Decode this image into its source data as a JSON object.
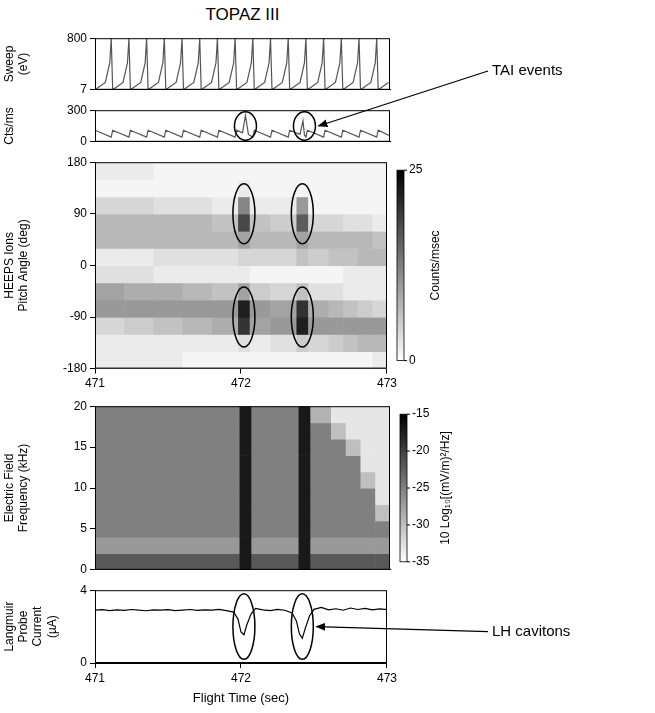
{
  "title": "TOPAZ III",
  "chart_data": [
    {
      "type": "line",
      "y_label": "Sweep (eV)",
      "color": "#555555",
      "grid": false,
      "tick_labels": "y",
      "xlim": [
        471,
        473
      ],
      "ylim": [
        7,
        800
      ],
      "yticks": [
        7,
        800
      ],
      "x": [
        471.0,
        471.07,
        471.1,
        471.11,
        471.12,
        471.19,
        471.22,
        471.23,
        471.24,
        471.31,
        471.34,
        471.35,
        471.36,
        471.43,
        471.46,
        471.47,
        471.48,
        471.55,
        471.58,
        471.59,
        471.6,
        471.67,
        471.7,
        471.71,
        471.72,
        471.79,
        471.82,
        471.83,
        471.84,
        471.91,
        471.94,
        471.95,
        471.96,
        472.03,
        472.06,
        472.07,
        472.08,
        472.15,
        472.18,
        472.19,
        472.2,
        472.27,
        472.3,
        472.31,
        472.32,
        472.39,
        472.42,
        472.43,
        472.44,
        472.51,
        472.54,
        472.55,
        472.56,
        472.63,
        472.66,
        472.67,
        472.68,
        472.75,
        472.78,
        472.79,
        472.8,
        472.87,
        472.9,
        472.91,
        472.92,
        472.99
      ],
      "values": [
        7,
        120,
        420,
        800,
        7,
        120,
        420,
        800,
        7,
        120,
        420,
        800,
        7,
        120,
        420,
        800,
        7,
        120,
        420,
        800,
        7,
        120,
        420,
        800,
        7,
        120,
        420,
        800,
        7,
        120,
        420,
        800,
        7,
        120,
        420,
        800,
        7,
        120,
        420,
        800,
        7,
        120,
        420,
        800,
        7,
        120,
        420,
        800,
        7,
        120,
        420,
        800,
        7,
        120,
        420,
        800,
        7,
        120,
        420,
        800,
        7,
        120,
        420,
        800,
        7,
        120
      ]
    },
    {
      "type": "line",
      "y_label": "Cts/ms",
      "color": "#555555",
      "grid": false,
      "tick_labels": "y",
      "xlim": [
        471,
        473
      ],
      "ylim": [
        0,
        300
      ],
      "yticks": [
        0,
        300
      ],
      "x": [
        471.0,
        471.11,
        471.12,
        471.23,
        471.24,
        471.35,
        471.36,
        471.47,
        471.48,
        471.59,
        471.6,
        471.71,
        471.72,
        471.83,
        471.84,
        471.95,
        471.96,
        472.0,
        472.02,
        472.04,
        472.07,
        472.08,
        472.19,
        472.2,
        472.31,
        472.32,
        472.39,
        472.41,
        472.42,
        472.43,
        472.44,
        472.55,
        472.56,
        472.67,
        472.68,
        472.79,
        472.8,
        472.91,
        472.92,
        473.0
      ],
      "values": [
        110,
        45,
        110,
        45,
        110,
        45,
        110,
        45,
        110,
        45,
        110,
        45,
        110,
        45,
        110,
        45,
        110,
        85,
        250,
        70,
        45,
        110,
        45,
        110,
        45,
        110,
        70,
        200,
        65,
        45,
        110,
        45,
        110,
        45,
        110,
        45,
        110,
        45,
        110,
        55
      ],
      "highlighted_x": [
        472.02,
        472.42
      ],
      "annotation": "TAI events"
    },
    {
      "type": "heatmap",
      "y_label": [
        "HEEPS Ions",
        "Pitch Angle (deg)"
      ],
      "grid": false,
      "xlim": [
        471,
        473
      ],
      "xticks": [
        471,
        472,
        473
      ],
      "ylim": [
        -180,
        180
      ],
      "yticks": [
        -180,
        -90,
        0,
        90,
        180
      ],
      "x_edges": [
        471.0,
        471.2,
        471.4,
        471.6,
        471.8,
        471.98,
        472.06,
        472.2,
        472.38,
        472.46,
        472.6,
        472.7,
        472.8,
        472.9,
        473.0
      ],
      "y_edges": [
        -180,
        -150,
        -120,
        -90,
        -60,
        -30,
        0,
        30,
        60,
        90,
        120,
        150,
        180
      ],
      "cells": [
        [
          2,
          2,
          2,
          1,
          1,
          1,
          1,
          1,
          1,
          1,
          1,
          1,
          1,
          2
        ],
        [
          2,
          2,
          2,
          2,
          2,
          3,
          2,
          3,
          5,
          4,
          5,
          6,
          7,
          7
        ],
        [
          4,
          5,
          6,
          7,
          8,
          20,
          9,
          10,
          22,
          10,
          10,
          10,
          10,
          10
        ],
        [
          10,
          10,
          10,
          10,
          10,
          22,
          10,
          9,
          20,
          8,
          7,
          6,
          5,
          4
        ],
        [
          9,
          8,
          8,
          7,
          6,
          9,
          5,
          4,
          6,
          3,
          3,
          2,
          2,
          2
        ],
        [
          3,
          3,
          2,
          2,
          2,
          2,
          1,
          1,
          1,
          1,
          1,
          2,
          2,
          2
        ],
        [
          2,
          2,
          3,
          3,
          3,
          4,
          4,
          4,
          6,
          5,
          6,
          6,
          7,
          7
        ],
        [
          7,
          7,
          7,
          7,
          7,
          9,
          7,
          7,
          9,
          7,
          7,
          7,
          7,
          6
        ],
        [
          7,
          7,
          7,
          7,
          6,
          18,
          6,
          5,
          16,
          4,
          4,
          3,
          3,
          2
        ],
        [
          4,
          4,
          3,
          3,
          2,
          12,
          2,
          2,
          10,
          1,
          1,
          1,
          1,
          1
        ],
        [
          1,
          1,
          1,
          1,
          1,
          2,
          1,
          1,
          1,
          1,
          1,
          1,
          1,
          1
        ],
        [
          2,
          2,
          1,
          1,
          1,
          1,
          1,
          1,
          1,
          1,
          1,
          1,
          1,
          1
        ]
      ],
      "colorbar": {
        "label": "Counts/msec",
        "range": [
          0,
          25
        ],
        "ticks": [
          0,
          25
        ]
      },
      "highlighted_x": [
        472.02,
        472.42
      ],
      "highlighted_y": [
        90,
        -90
      ]
    },
    {
      "type": "heatmap",
      "y_label": [
        "Electric Field",
        "Frequency (kHz)"
      ],
      "grid": false,
      "tick_labels": "y",
      "xlim": [
        471,
        473
      ],
      "ylim": [
        0,
        20
      ],
      "yticks": [
        0,
        5,
        10,
        15,
        20
      ],
      "x_edges": [
        471.0,
        471.2,
        471.4,
        471.6,
        471.8,
        471.98,
        472.06,
        472.2,
        472.38,
        472.46,
        472.6,
        472.7,
        472.8,
        472.9,
        473.0
      ],
      "y_edges": [
        0,
        2,
        4,
        6,
        8,
        10,
        12,
        14,
        16,
        18,
        20
      ],
      "cells": [
        [
          -22,
          -22,
          -22,
          -22,
          -22,
          -17,
          -22,
          -22,
          -17,
          -22,
          -22,
          -22,
          -22,
          -22
        ],
        [
          -27,
          -27,
          -27,
          -27,
          -27,
          -17,
          -27,
          -27,
          -17,
          -27,
          -27,
          -27,
          -27,
          -27
        ],
        [
          -25,
          -25,
          -25,
          -25,
          -25,
          -17,
          -25,
          -25,
          -17,
          -25,
          -25,
          -25,
          -25,
          -25
        ],
        [
          -25,
          -25,
          -25,
          -25,
          -25,
          -17,
          -25,
          -25,
          -17,
          -25,
          -25,
          -25,
          -25,
          -30
        ],
        [
          -25,
          -25,
          -25,
          -25,
          -25,
          -17,
          -25,
          -25,
          -17,
          -25,
          -25,
          -25,
          -25,
          -33
        ],
        [
          -25,
          -25,
          -25,
          -25,
          -25,
          -17,
          -25,
          -25,
          -17,
          -25,
          -25,
          -25,
          -30,
          -33
        ],
        [
          -25,
          -25,
          -25,
          -25,
          -25,
          -17,
          -25,
          -25,
          -17,
          -25,
          -25,
          -25,
          -33,
          -33
        ],
        [
          -25,
          -25,
          -25,
          -25,
          -25,
          -17,
          -25,
          -25,
          -17,
          -25,
          -25,
          -30,
          -33,
          -33
        ],
        [
          -25,
          -25,
          -25,
          -25,
          -25,
          -17,
          -25,
          -25,
          -17,
          -25,
          -30,
          -33,
          -33,
          -33
        ],
        [
          -25,
          -25,
          -25,
          -25,
          -25,
          -17,
          -25,
          -25,
          -17,
          -29,
          -33,
          -33,
          -33,
          -33
        ]
      ],
      "colorbar": {
        "label": "10 Log₁₀[(mV/m)²/Hz]",
        "range": [
          -35,
          -15
        ],
        "ticks": [
          -35,
          -30,
          -25,
          -20,
          -15
        ]
      }
    },
    {
      "type": "line",
      "y_label": [
        "Langmuir Probe",
        "Current (µA)"
      ],
      "x_label": "Flight Time (sec)",
      "color": "#000000",
      "grid": false,
      "xlim": [
        471,
        473
      ],
      "xticks": [
        471,
        472,
        473
      ],
      "ylim": [
        0,
        4
      ],
      "yticks": [
        0,
        4
      ],
      "x": [
        471.0,
        471.05,
        471.1,
        471.15,
        471.2,
        471.25,
        471.3,
        471.35,
        471.4,
        471.45,
        471.5,
        471.55,
        471.6,
        471.65,
        471.7,
        471.75,
        471.8,
        471.85,
        471.9,
        471.95,
        471.98,
        472.0,
        472.02,
        472.04,
        472.07,
        472.1,
        472.15,
        472.2,
        472.25,
        472.3,
        472.35,
        472.38,
        472.4,
        472.42,
        472.44,
        472.47,
        472.5,
        472.55,
        472.6,
        472.65,
        472.7,
        472.75,
        472.8,
        472.85,
        472.9,
        472.95,
        473.0
      ],
      "values": [
        2.9,
        2.93,
        2.88,
        2.92,
        2.89,
        2.94,
        2.9,
        2.87,
        2.92,
        2.9,
        2.93,
        2.88,
        2.91,
        2.94,
        2.89,
        2.92,
        2.9,
        2.95,
        2.88,
        2.8,
        2.4,
        1.7,
        1.55,
        2.1,
        2.7,
        3.0,
        2.92,
        2.88,
        2.95,
        2.9,
        2.75,
        2.3,
        1.6,
        1.35,
        1.9,
        2.6,
        2.95,
        3.05,
        2.92,
        2.98,
        2.9,
        3.02,
        2.94,
        3.0,
        2.92,
        2.97,
        2.93
      ],
      "highlighted_x": [
        472.02,
        472.42
      ],
      "annotation": "LH cavitons"
    }
  ]
}
